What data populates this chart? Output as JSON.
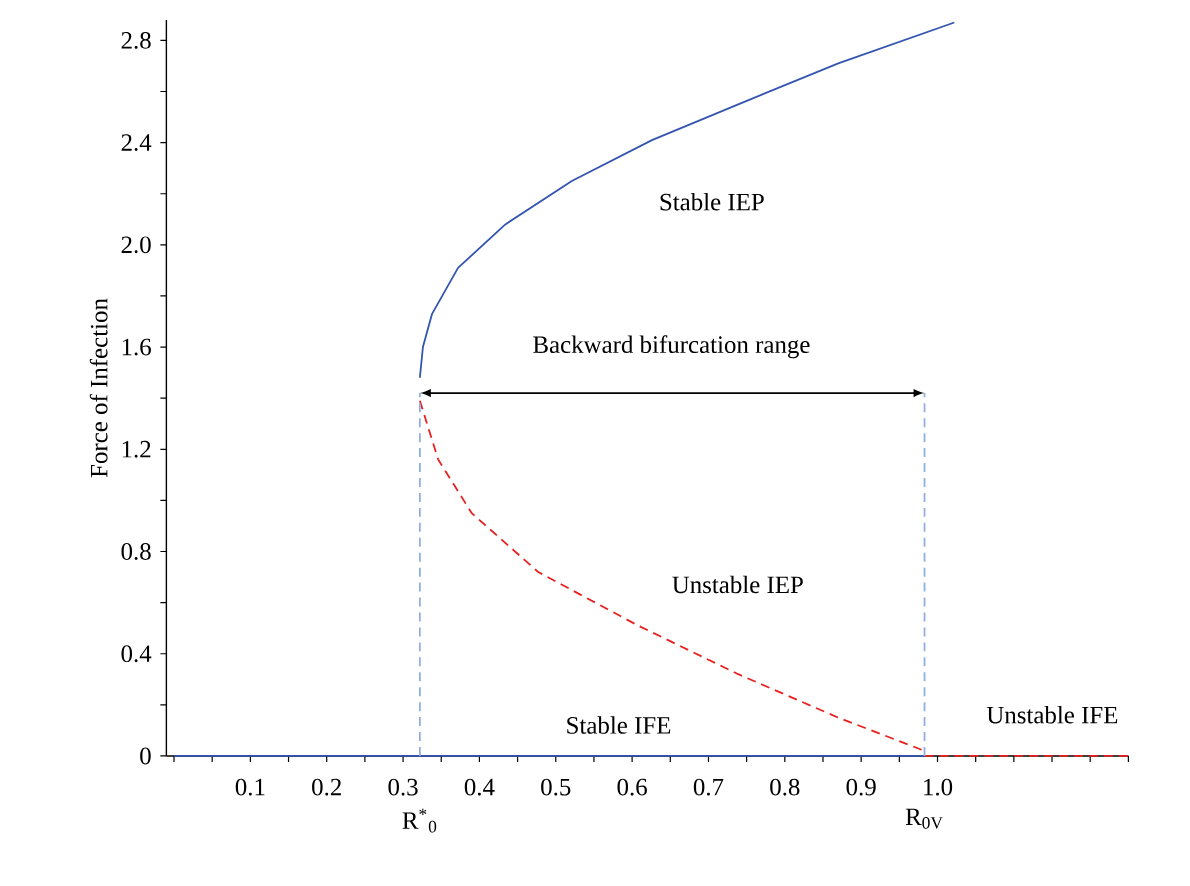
{
  "chart_data": {
    "type": "line",
    "ylabel": "Force of Infection",
    "xlim": [
      -0.01,
      1.25
    ],
    "ylim": [
      0,
      2.88
    ],
    "xticks": [
      {
        "value": 0,
        "label": null
      },
      {
        "value": 0.05,
        "label": null
      },
      {
        "value": 0.1,
        "label": "0.1"
      },
      {
        "value": 0.15,
        "label": null
      },
      {
        "value": 0.2,
        "label": "0.2"
      },
      {
        "value": 0.25,
        "label": null
      },
      {
        "value": 0.3,
        "label": "0.3"
      },
      {
        "value": 0.35,
        "label": null
      },
      {
        "value": 0.4,
        "label": "0.4"
      },
      {
        "value": 0.45,
        "label": null
      },
      {
        "value": 0.5,
        "label": "0.5"
      },
      {
        "value": 0.55,
        "label": null
      },
      {
        "value": 0.6,
        "label": "0.6"
      },
      {
        "value": 0.65,
        "label": null
      },
      {
        "value": 0.7,
        "label": "0.7"
      },
      {
        "value": 0.75,
        "label": null
      },
      {
        "value": 0.8,
        "label": "0.8"
      },
      {
        "value": 0.85,
        "label": null
      },
      {
        "value": 0.9,
        "label": "0.9"
      },
      {
        "value": 0.95,
        "label": null
      },
      {
        "value": 1.0,
        "label": "1.0"
      },
      {
        "value": 1.05,
        "label": null
      },
      {
        "value": 1.1,
        "label": null
      },
      {
        "value": 1.15,
        "label": null
      },
      {
        "value": 1.2,
        "label": null
      },
      {
        "value": 1.25,
        "label": null
      }
    ],
    "yticks": [
      {
        "value": 0,
        "label": "0"
      },
      {
        "value": 0.2,
        "label": null
      },
      {
        "value": 0.4,
        "label": "0.4"
      },
      {
        "value": 0.6,
        "label": null
      },
      {
        "value": 0.8,
        "label": "0.8"
      },
      {
        "value": 1.0,
        "label": null
      },
      {
        "value": 1.2,
        "label": "1.2"
      },
      {
        "value": 1.4,
        "label": null
      },
      {
        "value": 1.6,
        "label": "1.6"
      },
      {
        "value": 1.8,
        "label": null
      },
      {
        "value": 2.0,
        "label": "2.0"
      },
      {
        "value": 2.2,
        "label": null
      },
      {
        "value": 2.4,
        "label": "2.4"
      },
      {
        "value": 2.6,
        "label": null
      },
      {
        "value": 2.8,
        "label": "2.8"
      }
    ],
    "marker": "none",
    "series": [
      {
        "color": "#3355b0",
        "line_style": "solid",
        "x": [
          0.322,
          0.326,
          0.338,
          0.372,
          0.434,
          0.521,
          0.626,
          0.739,
          0.87,
          1.022
        ],
        "values": [
          1.48,
          1.6,
          1.73,
          1.91,
          2.08,
          2.25,
          2.41,
          2.55,
          2.71,
          2.87
        ]
      },
      {
        "color": "#e82020",
        "line_style": "dashed",
        "x": [
          0.322,
          0.346,
          0.39,
          0.477,
          0.608,
          0.739,
          0.87,
          0.983
        ],
        "values": [
          1.39,
          1.16,
          0.95,
          0.72,
          0.51,
          0.32,
          0.15,
          0.02
        ]
      },
      {
        "color": "#3355b0",
        "line_style": "solid",
        "x": [
          0,
          0.983
        ],
        "values": [
          0,
          0
        ]
      },
      {
        "color": "#e82020",
        "line_style": "dashed",
        "x": [
          0.983,
          1.25
        ],
        "values": [
          0,
          0
        ]
      },
      {
        "color": "#8fb0e0",
        "line_style": "dashed",
        "x": [
          0.322,
          0.322
        ],
        "values": [
          0,
          1.42
        ]
      },
      {
        "color": "#8fb0e0",
        "line_style": "dashed",
        "x": [
          0.983,
          0.983
        ],
        "values": [
          0,
          1.42
        ]
      }
    ],
    "annotations": [
      "Stable IEP",
      "Backward bifurcation range",
      "Unstable IEP",
      "Stable IFE",
      "Unstable IFE",
      {
        "text": "R$^{*}$$_{0}$",
        "x": 0.322,
        "y": 0
      },
      {
        "text": "R$_{0V}$",
        "x": 0.983,
        "y": 0
      }
    ]
  }
}
